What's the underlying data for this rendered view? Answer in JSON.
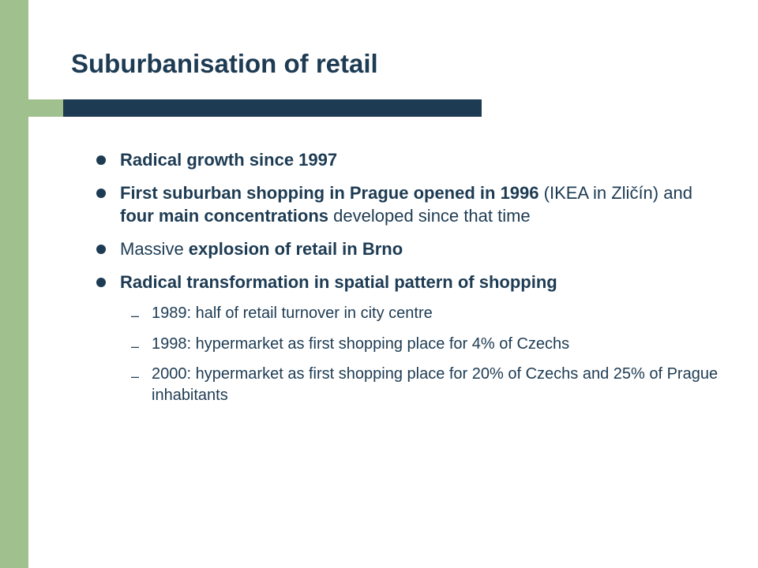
{
  "title": "Suburbanisation of retail",
  "colors": {
    "navy": "#1d3b53",
    "green": "#a0c08e",
    "white": "#ffffff"
  },
  "bullets": [
    {
      "level": 1,
      "segments": [
        {
          "text": "Radical growth since 1997",
          "bold": true
        }
      ]
    },
    {
      "level": 1,
      "segments": [
        {
          "text": "First suburban shopping in Prague opened in 1996 ",
          "bold": true
        },
        {
          "text": "(IKEA in Zličín) and ",
          "bold": false
        },
        {
          "text": "four main concentrations ",
          "bold": true
        },
        {
          "text": "developed since that time",
          "bold": false
        }
      ]
    },
    {
      "level": 1,
      "segments": [
        {
          "text": "Massive ",
          "bold": false
        },
        {
          "text": "explosion of retail in Brno",
          "bold": true
        }
      ]
    },
    {
      "level": 1,
      "segments": [
        {
          "text": "Radical transformation in spatial pattern of shopping",
          "bold": true
        }
      ]
    },
    {
      "level": 2,
      "segments": [
        {
          "text": "1989: half of retail turnover in city centre",
          "bold": false
        }
      ]
    },
    {
      "level": 2,
      "segments": [
        {
          "text": "1998: hypermarket as first shopping place for 4% of Czechs",
          "bold": false
        }
      ]
    },
    {
      "level": 2,
      "segments": [
        {
          "text": "2000: hypermarket as first shopping place for 20% of Czechs and 25% of Prague inhabitants",
          "bold": false
        }
      ]
    }
  ]
}
